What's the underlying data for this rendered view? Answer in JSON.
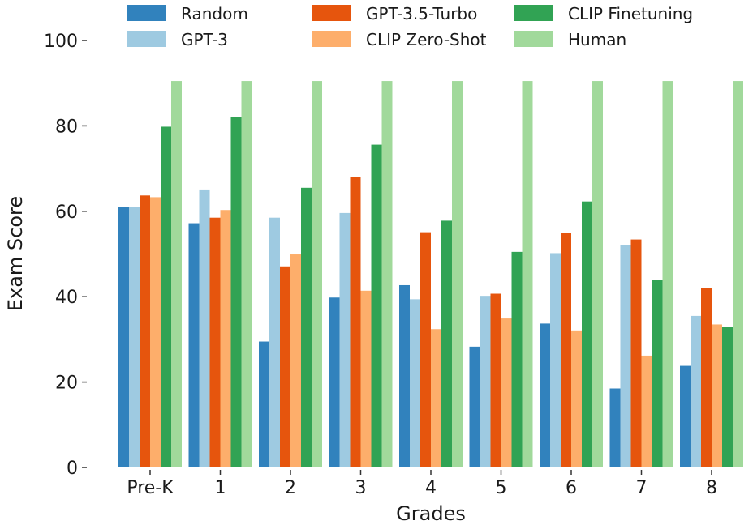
{
  "chart_data": {
    "type": "bar",
    "title": "",
    "xlabel": "Grades",
    "ylabel": "Exam Score",
    "ylim": [
      0,
      100
    ],
    "yticks": [
      0,
      20,
      40,
      60,
      80,
      100
    ],
    "grid": false,
    "legend_position": "top",
    "categories": [
      "Pre-K",
      "1",
      "2",
      "3",
      "4",
      "5",
      "6",
      "7",
      "8"
    ],
    "series": [
      {
        "name": "Random",
        "color": "#3182bd",
        "values": [
          61,
          57.2,
          29.5,
          39.8,
          42.7,
          28.3,
          33.7,
          18.5,
          23.8
        ]
      },
      {
        "name": "GPT-3",
        "color": "#9ecae1",
        "values": [
          61.1,
          65.1,
          58.5,
          59.6,
          39.4,
          40.2,
          50.2,
          52.1,
          35.5
        ]
      },
      {
        "name": "GPT-3.5-Turbo",
        "color": "#e6550d",
        "values": [
          63.7,
          58.5,
          47.1,
          68.1,
          55.1,
          40.7,
          54.9,
          53.4,
          42.1
        ]
      },
      {
        "name": "CLIP Zero-Shot",
        "color": "#fdae6b",
        "values": [
          63.3,
          60.3,
          49.9,
          41.4,
          32.4,
          34.9,
          32.1,
          26.2,
          33.5
        ]
      },
      {
        "name": "CLIP Finetuning",
        "color": "#31a354",
        "values": [
          79.8,
          82.1,
          65.5,
          75.6,
          57.8,
          50.5,
          62.3,
          43.9,
          32.9
        ]
      },
      {
        "name": "Human",
        "color": "#a1d99b",
        "values": [
          90.5,
          90.5,
          90.5,
          90.5,
          90.5,
          90.5,
          90.5,
          90.5,
          90.5
        ]
      }
    ]
  }
}
